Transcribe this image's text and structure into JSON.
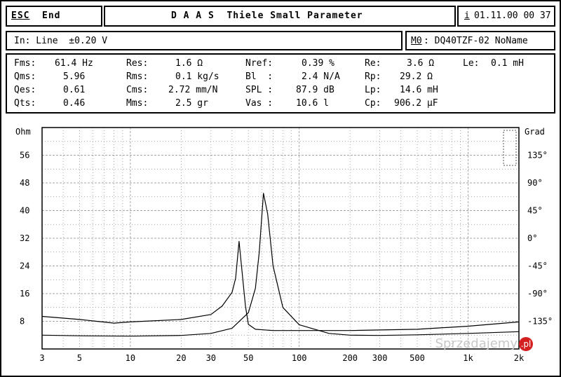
{
  "menu": {
    "esc_label": "ESC",
    "end_label": "End"
  },
  "header": {
    "title": "D A A S  Thiele Small Parameter",
    "info_key": "i",
    "datetime": "01.11.00 00 37"
  },
  "input": {
    "label": "In: Line  ±0.20 V"
  },
  "memory": {
    "slot": "M0",
    "name": ": DQ40TZF-02 NoName"
  },
  "params": [
    {
      "label": "Fms:",
      "value": "61.4 Hz"
    },
    {
      "label": "Qms:",
      "value": "5.96"
    },
    {
      "label": "Qes:",
      "value": "0.61"
    },
    {
      "label": "Qts:",
      "value": "0.46"
    },
    {
      "label": "Res:",
      "value": "1.6 Ω"
    },
    {
      "label": "Rms:",
      "value": "0.1 kg/s"
    },
    {
      "label": "Cms:",
      "value": "2.72 mm/N"
    },
    {
      "label": "Mms:",
      "value": "2.5 gr"
    },
    {
      "label": "Nref:",
      "value": "0.39 %"
    },
    {
      "label": "Bl  :",
      "value": "2.4 N/A"
    },
    {
      "label": "SPL :",
      "value": "87.9 dB"
    },
    {
      "label": "Vas :",
      "value": "10.6 l"
    },
    {
      "label": "Re:",
      "value": "3.6 Ω"
    },
    {
      "label": "Rp:",
      "value": "29.2 Ω"
    },
    {
      "label": "Lp:",
      "value": "14.6 mH"
    },
    {
      "label": "Cp:",
      "value": "906.2 µF"
    },
    {
      "label": "Le:",
      "value": "0.1 mH"
    }
  ],
  "chart_data": {
    "type": "line",
    "left_axis": {
      "label": "Ohm",
      "ticks": [
        "56",
        "48",
        "40",
        "32",
        "24",
        "16",
        "8"
      ],
      "ylim": [
        0,
        64
      ]
    },
    "right_axis": {
      "label": "Grad",
      "ticks": [
        "135°",
        "90°",
        "45°",
        "0°",
        "-45°",
        "-90°",
        "-135°"
      ],
      "ylim": [
        -180,
        180
      ]
    },
    "x_axis": {
      "scale": "log",
      "xlim": [
        3,
        2000
      ],
      "ticks": [
        "3",
        "5",
        "10",
        "20",
        "30",
        "50",
        "100",
        "200",
        "300",
        "500",
        "1k",
        "2k"
      ]
    },
    "grid": true,
    "series": [
      {
        "axis": "left",
        "x": [
          3,
          5,
          10,
          20,
          30,
          40,
          50,
          55,
          58,
          61.4,
          65,
          70,
          80,
          100,
          150,
          200,
          300,
          500,
          1000,
          2000
        ],
        "y": [
          4.0,
          3.8,
          3.7,
          3.9,
          4.5,
          6.0,
          10.5,
          17.5,
          28.0,
          45.0,
          39.0,
          24.0,
          12.0,
          7.0,
          4.5,
          4.0,
          3.9,
          4.1,
          4.5,
          5.0
        ]
      },
      {
        "axis": "right",
        "x": [
          3,
          5,
          8,
          10,
          20,
          30,
          35,
          40,
          42,
          44,
          46,
          48,
          50,
          55,
          70,
          100,
          200,
          500,
          1000,
          2000
        ],
        "y": [
          -127,
          -132,
          -138,
          -136,
          -132,
          -124,
          -110,
          -88,
          -65,
          -5,
          -58,
          -110,
          -140,
          -148,
          -150,
          -150,
          -150,
          -148,
          -143,
          -136
        ]
      }
    ]
  }
}
